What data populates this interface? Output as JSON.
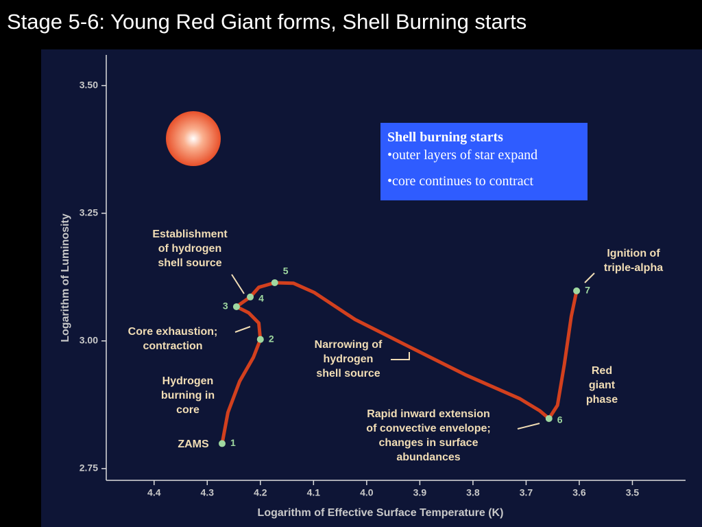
{
  "chart_data": {
    "type": "line",
    "title": "Stage 5-6: Young Red Giant forms, Shell Burning starts",
    "xlabel": "Logarithm of Effective Surface Temperature (K)",
    "ylabel": "Logarithm of Luminosity",
    "xlim": [
      4.49,
      3.4
    ],
    "ylim": [
      2.727,
      3.56
    ],
    "xticks": [
      4.4,
      4.3,
      4.2,
      4.1,
      {
        "value": 4.0,
        "label": "4.0"
      },
      3.9,
      3.8,
      3.7,
      3.6,
      3.5
    ],
    "yticks": [
      {
        "value": 3.5,
        "label": "3.50"
      },
      3.25,
      {
        "value": 3.0,
        "label": "3.00"
      },
      2.75
    ],
    "series": [
      {
        "color": "#d2401e",
        "x": [
          4.272,
          4.261,
          4.239,
          4.213,
          4.2,
          4.203,
          4.222,
          4.245,
          4.219,
          4.203,
          4.173,
          4.138,
          4.099,
          4.022,
          3.919,
          3.815,
          3.712,
          3.674,
          3.657,
          3.641,
          3.628,
          3.615,
          3.605
        ],
        "values": [
          2.799,
          2.86,
          2.921,
          2.968,
          3.003,
          3.035,
          3.055,
          3.067,
          3.086,
          3.105,
          3.114,
          3.113,
          3.095,
          3.042,
          2.988,
          2.934,
          2.887,
          2.863,
          2.848,
          2.874,
          2.954,
          3.048,
          3.098
        ]
      }
    ],
    "points": {
      "color": "#9fd8a0",
      "labels": [
        "1",
        "2",
        "3",
        "4",
        "5",
        "6",
        "7"
      ],
      "x": [
        4.272,
        4.2,
        4.245,
        4.219,
        4.173,
        3.657,
        3.605
      ],
      "values": [
        2.799,
        3.003,
        3.067,
        3.086,
        3.114,
        2.848,
        3.098
      ]
    },
    "annotations": [
      [
        "Establishment",
        "of hydrogen",
        "shell source"
      ],
      [
        "Core exhaustion;",
        "contraction"
      ],
      [
        "Hydrogen",
        "burning in",
        "core"
      ],
      [
        "ZAMS"
      ],
      [
        "Narrowing of",
        "hydrogen",
        "shell source"
      ],
      [
        "Rapid inward extension",
        "of convective envelope;",
        "changes in surface",
        "abundances"
      ],
      [
        "Ignition of",
        "triple-alpha"
      ],
      [
        "Red",
        "giant",
        "phase"
      ]
    ],
    "info_box": {
      "heading": "Shell burning starts",
      "items": [
        "•outer layers of star expand",
        "•core continues to contract"
      ]
    }
  }
}
